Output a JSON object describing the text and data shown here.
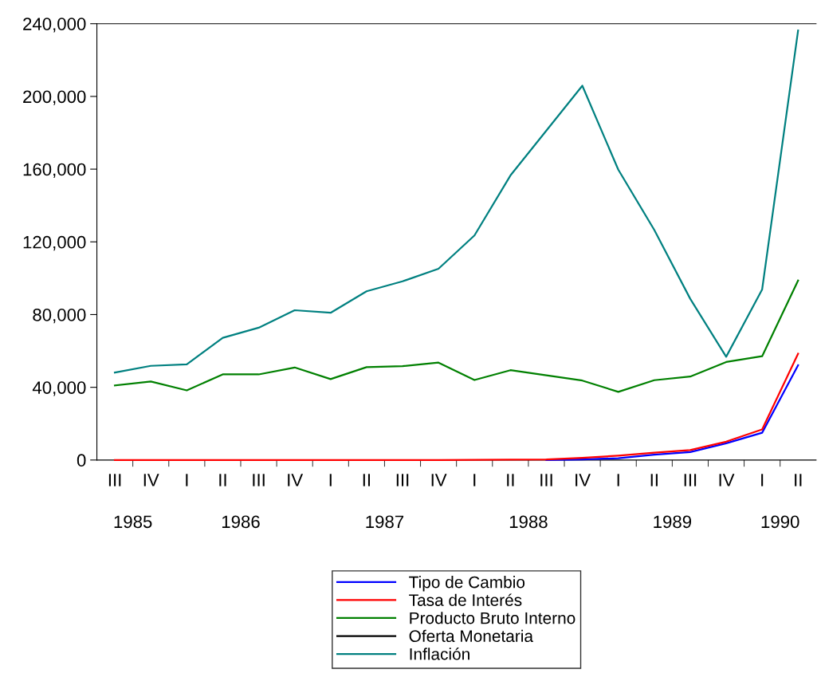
{
  "chart_data": {
    "type": "line",
    "categories": [
      "III",
      "IV",
      "I",
      "II",
      "III",
      "IV",
      "I",
      "II",
      "III",
      "IV",
      "I",
      "II",
      "III",
      "IV",
      "I",
      "II",
      "III",
      "IV",
      "I",
      "II"
    ],
    "annotations": [
      "1985",
      "1986",
      "1987",
      "1988",
      "1989",
      "1990"
    ],
    "ylim": [
      0,
      240000
    ],
    "yticks": [
      0,
      {
        "value": 40000,
        "label": "40,000"
      },
      {
        "value": 80000,
        "label": "80,000"
      },
      {
        "value": 120000,
        "label": "120,000"
      },
      {
        "value": 160000,
        "label": "160,000"
      },
      {
        "value": 200000,
        "label": "200,000"
      },
      {
        "value": 240000,
        "label": "240,000"
      }
    ],
    "grid": false,
    "legend": "bottom",
    "marker": "none",
    "line_style": "solid",
    "series": [
      {
        "name": "Tipo de Cambio",
        "color": "#0000ff",
        "values": [
          null,
          null,
          null,
          null,
          null,
          null,
          null,
          null,
          null,
          null,
          null,
          null,
          0,
          300,
          1000,
          2900,
          4400,
          9200,
          15000,
          52100
        ]
      },
      {
        "name": "Tasa de Interés",
        "color": "#ff0000",
        "values": [
          0,
          0,
          0,
          0,
          0,
          0,
          0,
          0,
          0,
          0,
          100,
          200,
          300,
          1200,
          2400,
          4000,
          5500,
          10100,
          16800,
          58500
        ]
      },
      {
        "name": "Producto Bruto Interno",
        "color": "#008000",
        "values": [
          41000,
          43200,
          38300,
          47100,
          47100,
          50900,
          44500,
          51100,
          51600,
          53600,
          44000,
          49400,
          46600,
          43700,
          37500,
          43900,
          45900,
          53900,
          57100,
          98700
        ]
      },
      {
        "name": "Oferta Monetaria",
        "color": "#000000",
        "values": [
          null,
          null,
          null,
          null,
          null,
          null,
          null,
          null,
          null,
          null,
          null,
          null,
          null,
          null,
          null,
          null,
          null,
          null,
          null,
          null
        ]
      },
      {
        "name": "Inflación",
        "color": "#008080",
        "values": [
          48100,
          51800,
          52600,
          67200,
          72800,
          82400,
          81000,
          92800,
          98300,
          105200,
          123500,
          156500,
          181200,
          205900,
          159700,
          126600,
          88700,
          56800,
          93800,
          236300
        ]
      }
    ]
  }
}
